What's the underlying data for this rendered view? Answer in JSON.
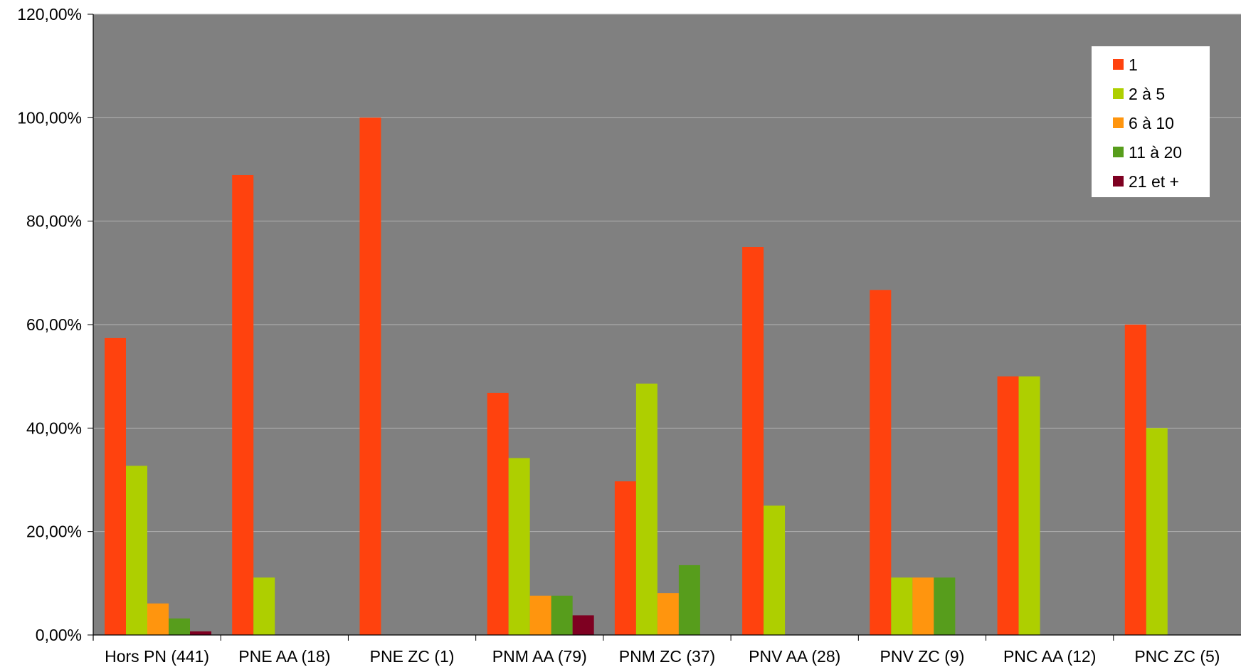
{
  "chart_data": {
    "type": "bar",
    "title": "",
    "xlabel": "",
    "ylabel": "",
    "ylim": [
      0,
      120
    ],
    "y_ticks": [
      0,
      20,
      40,
      60,
      80,
      100,
      120
    ],
    "y_tick_labels": [
      "0,00%",
      "20,00%",
      "40,00%",
      "60,00%",
      "80,00%",
      "100,00%",
      "120,00%"
    ],
    "categories": [
      "Hors PN (441)",
      "PNE AA (18)",
      "PNE ZC (1)",
      "PNM AA (79)",
      "PNM ZC (37)",
      "PNV AA (28)",
      "PNV ZC (9)",
      "PNC AA (12)",
      "PNC ZC (5)"
    ],
    "series": [
      {
        "name": "1",
        "color": "#ff420e",
        "values": [
          57.4,
          88.9,
          100,
          46.8,
          29.7,
          75.0,
          66.7,
          50.0,
          60.0
        ]
      },
      {
        "name": "2 à 5",
        "color": "#aecf00",
        "values": [
          32.7,
          11.1,
          0,
          34.2,
          48.6,
          25.0,
          11.1,
          50.0,
          40.0
        ]
      },
      {
        "name": "6 à 10",
        "color": "#ff950e",
        "values": [
          6.1,
          0,
          0,
          7.6,
          8.1,
          0,
          11.1,
          0,
          0
        ]
      },
      {
        "name": "11 à 20",
        "color": "#579d1c",
        "values": [
          3.2,
          0,
          0,
          7.6,
          13.5,
          0,
          11.1,
          0,
          0
        ]
      },
      {
        "name": "21 et +",
        "color": "#7e0021",
        "values": [
          0.7,
          0,
          0,
          3.8,
          0,
          0,
          0,
          0,
          0
        ]
      }
    ],
    "grid": true,
    "legend_position": "top-right",
    "plot_background": "#808080",
    "gridline_color": "#b3b3b3"
  }
}
